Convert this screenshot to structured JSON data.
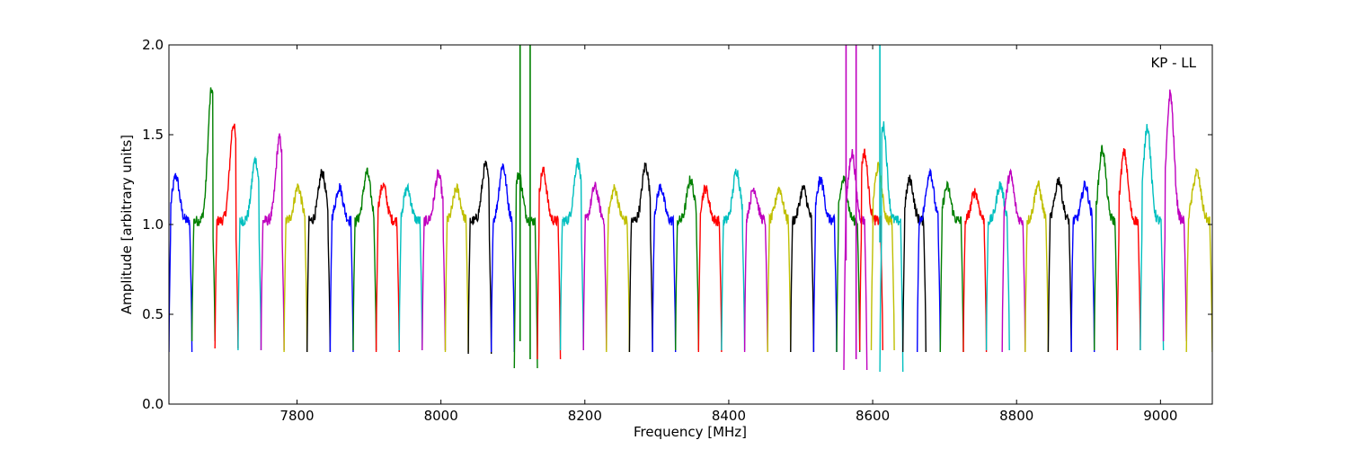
{
  "chart_data": {
    "type": "line",
    "title": "",
    "xlabel": "Frequency [MHz]",
    "ylabel": "Amplitude [arbitrary units]",
    "xlim": [
      7622,
      9072
    ],
    "ylim": [
      0.0,
      2.0
    ],
    "x_ticks": [
      7800,
      8000,
      8200,
      8400,
      8600,
      8800,
      9000
    ],
    "y_ticks": [
      0.0,
      0.5,
      1.0,
      1.5,
      2.0
    ],
    "y_tick_labels": [
      "0.0",
      "0.5",
      "1.0",
      "1.5",
      "2.0"
    ],
    "grid": false,
    "annotation": "KP - LL",
    "annotation_position": "top-right",
    "color_cycle": [
      "#0000ff",
      "#008000",
      "#ff0000",
      "#00bfbf",
      "#bf00bf",
      "#bfbf00",
      "#000000"
    ],
    "band_width_mhz": 32,
    "series": [
      {
        "color": "#0000ff",
        "x_start": 7622,
        "x_end": 7654,
        "peak": 1.27,
        "peak_pos": 0.3,
        "floor": 0.29
      },
      {
        "color": "#008000",
        "x_start": 7654,
        "x_end": 7686,
        "peak": 1.75,
        "peak_pos": 0.85,
        "floor": 0.35
      },
      {
        "color": "#ff0000",
        "x_start": 7686,
        "x_end": 7718,
        "peak": 1.56,
        "peak_pos": 0.8,
        "floor": 0.31
      },
      {
        "color": "#00bfbf",
        "x_start": 7718,
        "x_end": 7750,
        "peak": 1.36,
        "peak_pos": 0.75,
        "floor": 0.3
      },
      {
        "color": "#bf00bf",
        "x_start": 7750,
        "x_end": 7782,
        "peak": 1.48,
        "peak_pos": 0.8,
        "floor": 0.3
      },
      {
        "color": "#bfbf00",
        "x_start": 7782,
        "x_end": 7814,
        "peak": 1.21,
        "peak_pos": 0.6,
        "floor": 0.29
      },
      {
        "color": "#000000",
        "x_start": 7814,
        "x_end": 7846,
        "peak": 1.29,
        "peak_pos": 0.65,
        "floor": 0.29
      },
      {
        "color": "#0000ff",
        "x_start": 7846,
        "x_end": 7878,
        "peak": 1.21,
        "peak_pos": 0.4,
        "floor": 0.29
      },
      {
        "color": "#008000",
        "x_start": 7878,
        "x_end": 7910,
        "peak": 1.29,
        "peak_pos": 0.6,
        "floor": 0.3
      },
      {
        "color": "#ff0000",
        "x_start": 7910,
        "x_end": 7942,
        "peak": 1.22,
        "peak_pos": 0.3,
        "floor": 0.29
      },
      {
        "color": "#00bfbf",
        "x_start": 7942,
        "x_end": 7974,
        "peak": 1.2,
        "peak_pos": 0.35,
        "floor": 0.3
      },
      {
        "color": "#bf00bf",
        "x_start": 7974,
        "x_end": 8006,
        "peak": 1.28,
        "peak_pos": 0.7,
        "floor": 0.3
      },
      {
        "color": "#bfbf00",
        "x_start": 8006,
        "x_end": 8038,
        "peak": 1.2,
        "peak_pos": 0.5,
        "floor": 0.29
      },
      {
        "color": "#000000",
        "x_start": 8038,
        "x_end": 8070,
        "peak": 1.33,
        "peak_pos": 0.75,
        "floor": 0.28
      },
      {
        "color": "#0000ff",
        "x_start": 8070,
        "x_end": 8102,
        "peak": 1.33,
        "peak_pos": 0.5,
        "floor": 0.29
      },
      {
        "color": "#008000",
        "x_start": 8102,
        "x_end": 8134,
        "peak": 1.28,
        "peak_pos": 0.2,
        "floor": 0.2
      },
      {
        "color": "#ff0000",
        "x_start": 8134,
        "x_end": 8166,
        "peak": 1.3,
        "peak_pos": 0.25,
        "floor": 0.25
      },
      {
        "color": "#00bfbf",
        "x_start": 8166,
        "x_end": 8198,
        "peak": 1.35,
        "peak_pos": 0.75,
        "floor": 0.3
      },
      {
        "color": "#bf00bf",
        "x_start": 8198,
        "x_end": 8230,
        "peak": 1.21,
        "peak_pos": 0.5,
        "floor": 0.3
      },
      {
        "color": "#bfbf00",
        "x_start": 8230,
        "x_end": 8262,
        "peak": 1.2,
        "peak_pos": 0.35,
        "floor": 0.29
      },
      {
        "color": "#000000",
        "x_start": 8262,
        "x_end": 8294,
        "peak": 1.33,
        "peak_pos": 0.7,
        "floor": 0.29
      },
      {
        "color": "#0000ff",
        "x_start": 8294,
        "x_end": 8326,
        "peak": 1.21,
        "peak_pos": 0.35,
        "floor": 0.29
      },
      {
        "color": "#008000",
        "x_start": 8326,
        "x_end": 8358,
        "peak": 1.25,
        "peak_pos": 0.65,
        "floor": 0.3
      },
      {
        "color": "#ff0000",
        "x_start": 8358,
        "x_end": 8390,
        "peak": 1.2,
        "peak_pos": 0.3,
        "floor": 0.29
      },
      {
        "color": "#00bfbf",
        "x_start": 8390,
        "x_end": 8422,
        "peak": 1.3,
        "peak_pos": 0.65,
        "floor": 0.3
      },
      {
        "color": "#bf00bf",
        "x_start": 8422,
        "x_end": 8454,
        "peak": 1.2,
        "peak_pos": 0.4,
        "floor": 0.29
      },
      {
        "color": "#bfbf00",
        "x_start": 8454,
        "x_end": 8486,
        "peak": 1.2,
        "peak_pos": 0.5,
        "floor": 0.29
      },
      {
        "color": "#000000",
        "x_start": 8486,
        "x_end": 8518,
        "peak": 1.2,
        "peak_pos": 0.55,
        "floor": 0.29
      },
      {
        "color": "#0000ff",
        "x_start": 8518,
        "x_end": 8550,
        "peak": 1.25,
        "peak_pos": 0.3,
        "floor": 0.29
      },
      {
        "color": "#008000",
        "x_start": 8550,
        "x_end": 8582,
        "peak": 1.25,
        "peak_pos": 0.3,
        "floor": 0.29
      },
      {
        "color": "#bf00bf",
        "x_start": 8560,
        "x_end": 8592,
        "peak": 1.4,
        "peak_pos": 0.35,
        "floor": 0.19
      },
      {
        "color": "#ff0000",
        "x_start": 8582,
        "x_end": 8614,
        "peak": 1.4,
        "peak_pos": 0.2,
        "floor": 0.3
      },
      {
        "color": "#bfbf00",
        "x_start": 8598,
        "x_end": 8630,
        "peak": 1.32,
        "peak_pos": 0.3,
        "floor": 0.3
      },
      {
        "color": "#00bfbf",
        "x_start": 8610,
        "x_end": 8642,
        "peak": 1.55,
        "peak_pos": 0.15,
        "floor": 0.18
      },
      {
        "color": "#000000",
        "x_start": 8642,
        "x_end": 8674,
        "peak": 1.25,
        "peak_pos": 0.3,
        "floor": 0.29
      },
      {
        "color": "#0000ff",
        "x_start": 8662,
        "x_end": 8694,
        "peak": 1.3,
        "peak_pos": 0.55,
        "floor": 0.29
      },
      {
        "color": "#008000",
        "x_start": 8694,
        "x_end": 8726,
        "peak": 1.21,
        "peak_pos": 0.3,
        "floor": 0.29
      },
      {
        "color": "#ff0000",
        "x_start": 8726,
        "x_end": 8758,
        "peak": 1.18,
        "peak_pos": 0.5,
        "floor": 0.29
      },
      {
        "color": "#00bfbf",
        "x_start": 8758,
        "x_end": 8790,
        "peak": 1.22,
        "peak_pos": 0.6,
        "floor": 0.3
      },
      {
        "color": "#bf00bf",
        "x_start": 8780,
        "x_end": 8812,
        "peak": 1.28,
        "peak_pos": 0.35,
        "floor": 0.29
      },
      {
        "color": "#bfbf00",
        "x_start": 8812,
        "x_end": 8844,
        "peak": 1.22,
        "peak_pos": 0.55,
        "floor": 0.29
      },
      {
        "color": "#000000",
        "x_start": 8844,
        "x_end": 8876,
        "peak": 1.25,
        "peak_pos": 0.45,
        "floor": 0.29
      },
      {
        "color": "#0000ff",
        "x_start": 8876,
        "x_end": 8908,
        "peak": 1.22,
        "peak_pos": 0.6,
        "floor": 0.29
      },
      {
        "color": "#008000",
        "x_start": 8908,
        "x_end": 8940,
        "peak": 1.42,
        "peak_pos": 0.35,
        "floor": 0.3
      },
      {
        "color": "#ff0000",
        "x_start": 8940,
        "x_end": 8972,
        "peak": 1.4,
        "peak_pos": 0.3,
        "floor": 0.3
      },
      {
        "color": "#00bfbf",
        "x_start": 8972,
        "x_end": 9004,
        "peak": 1.55,
        "peak_pos": 0.3,
        "floor": 0.3
      },
      {
        "color": "#bf00bf",
        "x_start": 9004,
        "x_end": 9036,
        "peak": 1.73,
        "peak_pos": 0.3,
        "floor": 0.35
      },
      {
        "color": "#bfbf00",
        "x_start": 9036,
        "x_end": 9072,
        "peak": 1.29,
        "peak_pos": 0.4,
        "floor": 0.29
      }
    ],
    "spikes": [
      {
        "color": "#008000",
        "x": 8110,
        "y_low": 0.35,
        "y_high": 2.0
      },
      {
        "color": "#008000",
        "x": 8124,
        "y_low": 0.25,
        "y_high": 2.0
      },
      {
        "color": "#bf00bf",
        "x": 8563,
        "y_low": 0.8,
        "y_high": 2.0
      },
      {
        "color": "#bf00bf",
        "x": 8577,
        "y_low": 0.25,
        "y_high": 2.0
      },
      {
        "color": "#00bfbf",
        "x": 8610,
        "y_low": 0.9,
        "y_high": 2.0
      }
    ]
  }
}
